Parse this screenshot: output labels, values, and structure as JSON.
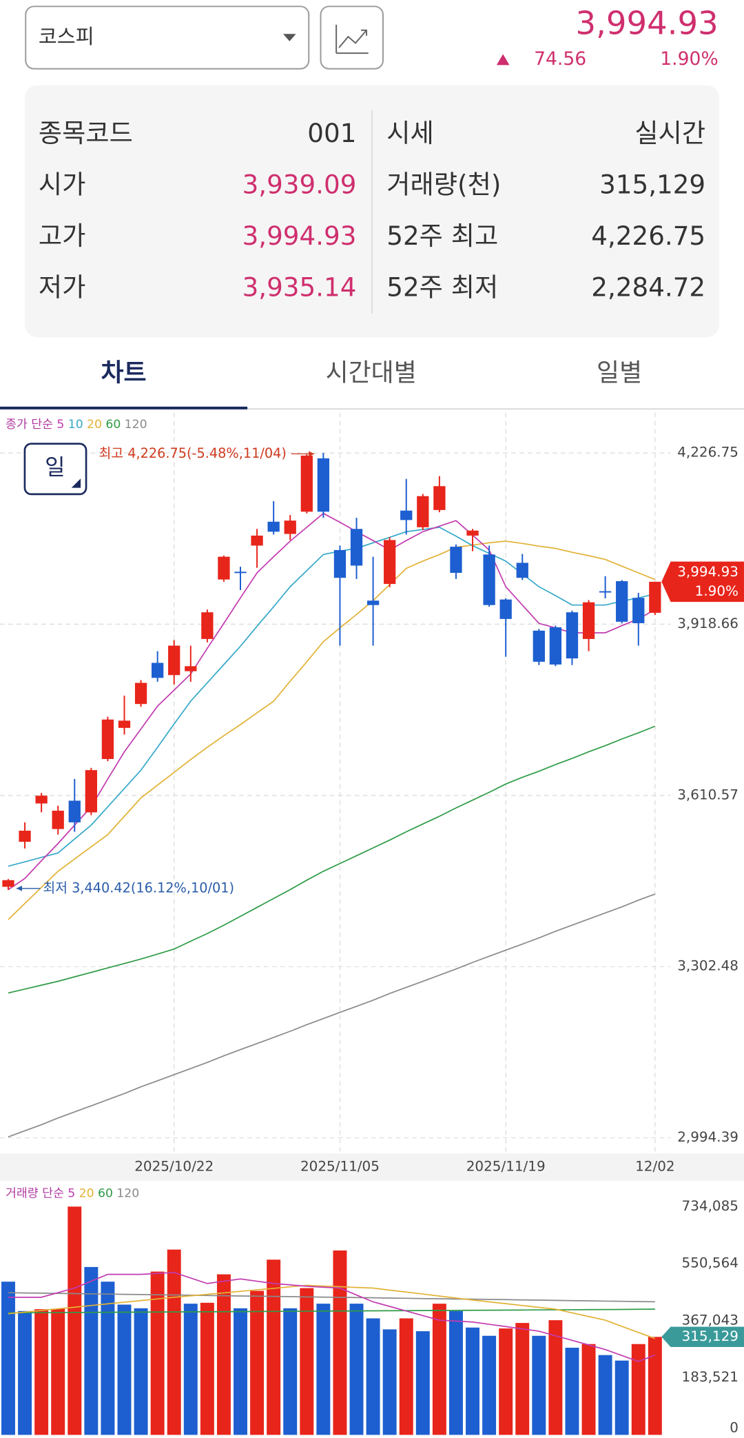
{
  "header": {
    "market": "코스피",
    "price": "3,994.93",
    "change": "74.56",
    "change_rate": "1.90%"
  },
  "info": {
    "left": [
      [
        "종목코드",
        "001"
      ],
      [
        "시가",
        "3,939.09"
      ],
      [
        "고가",
        "3,994.93"
      ],
      [
        "저가",
        "3,935.14"
      ]
    ],
    "right": [
      [
        "시세",
        "실시간"
      ],
      [
        "거래량(천)",
        "315,129"
      ],
      [
        "52주 최고",
        "4,226.75"
      ],
      [
        "52주 최저",
        "2,284.72"
      ]
    ]
  },
  "tabs": [
    "차트",
    "시간대별",
    "일별"
  ],
  "period_button": "일",
  "chart_data": [
    {
      "type": "candlestick",
      "legend_title": "종가 단순",
      "categories": [
        null,
        null,
        null,
        null,
        null,
        null,
        null,
        null,
        null,
        null,
        "2025/10/22",
        null,
        null,
        null,
        null,
        null,
        null,
        null,
        null,
        null,
        "2025/11/05",
        null,
        null,
        null,
        null,
        null,
        null,
        null,
        null,
        null,
        "2025/11/19",
        null,
        null,
        null,
        null,
        null,
        null,
        null,
        null,
        "12/02"
      ],
      "open": [
        3446,
        3527,
        3596,
        3550,
        3601,
        3580,
        3676,
        3732,
        3775,
        3849,
        3827,
        3834,
        3892,
        3999,
        4013,
        4060,
        4103,
        4081,
        4121,
        4217,
        4052,
        4090,
        3961,
        3991,
        4123,
        4093,
        4124,
        4058,
        4078,
        4044,
        3963,
        4029,
        3907,
        3913,
        3940,
        3892,
        3978,
        3996,
        3966,
        3939.09
      ],
      "high": [
        3460,
        3562,
        3615,
        3592,
        3640,
        3660,
        3752,
        3790,
        3818,
        3870,
        3890,
        3880,
        3945,
        4042,
        4022,
        4090,
        4140,
        4115,
        4224,
        4226.75,
        4060,
        4110,
        4040,
        4075,
        4180,
        4153,
        4185,
        4062,
        4090,
        4060,
        3965,
        4045,
        3910,
        3916,
        3943,
        3962,
        4005,
        3998,
        3975,
        3994.93
      ],
      "low": [
        3440.42,
        3515,
        3580,
        3540,
        3545,
        3575,
        3672,
        3720,
        3770,
        3815,
        3810,
        3815,
        3886,
        3995,
        3980,
        4020,
        4080,
        4070,
        4118,
        4110,
        3880,
        4000,
        3880,
        3985,
        4080,
        4088,
        4120,
        4000,
        4050,
        3950,
        3860,
        3998,
        3845,
        3843,
        3845,
        3870,
        3965,
        3920,
        3880,
        3935.14
      ],
      "close": [
        3458,
        3547,
        3610,
        3583,
        3562,
        3656,
        3747,
        3745,
        3813,
        3822,
        3880,
        3843,
        3940,
        4040,
        4011,
        4078,
        4085,
        4105,
        4222,
        4121,
        4002,
        4024,
        3953,
        4070,
        4106,
        4149,
        4167,
        4011,
        4087,
        3953,
        3928,
        4002,
        3851,
        3846,
        3857,
        3958,
        3976,
        3923,
        3920.37,
        3994.93
      ],
      "up_color": "#e8251b",
      "down_color": "#1d5fd0",
      "series": [
        {
          "name": "5",
          "color": "#c23bb0",
          "values": [
            3441,
            3461,
            3493,
            3524,
            3557,
            3590,
            3640,
            3689,
            3730,
            3771,
            3800,
            3829,
            3875,
            3920,
            3966,
            4011,
            4040,
            4068,
            4093,
            4118,
            4102,
            4085,
            4069,
            4052,
            4069,
            4085,
            4095,
            4105,
            4079,
            4052,
            3986,
            3953,
            3920,
            3912,
            3903,
            3903,
            3903,
            3916,
            3928,
            3945
          ]
        },
        {
          "name": "10",
          "color": "#35a9c9",
          "values": [
            3483,
            3491,
            3499,
            3507,
            3532,
            3557,
            3590,
            3623,
            3656,
            3697,
            3739,
            3780,
            3813,
            3846,
            3879,
            3915,
            3950,
            3986,
            4015,
            4044,
            4050,
            4055,
            4065,
            4075,
            4085,
            4089,
            4093,
            4077,
            4060,
            4046,
            4032,
            4009,
            3986,
            3970,
            3953,
            3953,
            3953,
            3960,
            3966,
            3973
          ]
        },
        {
          "name": "20",
          "color": "#e2b236",
          "values": [
            3387,
            3416,
            3445,
            3474,
            3496,
            3518,
            3540,
            3573,
            3606,
            3629,
            3652,
            3675,
            3697,
            3718,
            3738,
            3759,
            3780,
            3816,
            3851,
            3887,
            3912,
            3936,
            3961,
            3990,
            4019,
            4032,
            4044,
            4057,
            4061,
            4065,
            4068,
            4064,
            4059,
            4055,
            4048,
            4042,
            4035,
            4023,
            4011,
            3999
          ]
        },
        {
          "name": "60",
          "color": "#2e9b46",
          "values": [
            3255,
            3262,
            3269,
            3276,
            3284,
            3292,
            3300,
            3308,
            3316,
            3325,
            3334,
            3348,
            3362,
            3377,
            3393,
            3409,
            3425,
            3441,
            3458,
            3474,
            3488,
            3502,
            3516,
            3530,
            3545,
            3559,
            3573,
            3588,
            3602,
            3616,
            3631,
            3643,
            3654,
            3666,
            3677,
            3689,
            3700,
            3712,
            3723,
            3735
          ]
        },
        {
          "name": "120",
          "color": "#8a8a8a",
          "values": [
            2996,
            3007,
            3018,
            3030,
            3041,
            3052,
            3063,
            3074,
            3086,
            3097,
            3108,
            3119,
            3130,
            3142,
            3153,
            3164,
            3175,
            3186,
            3198,
            3209,
            3220,
            3231,
            3242,
            3254,
            3265,
            3276,
            3287,
            3298,
            3310,
            3321,
            3332,
            3343,
            3354,
            3366,
            3377,
            3388,
            3399,
            3410,
            3422,
            3433
          ]
        }
      ],
      "ylim": [
        2966.3,
        4291.1
      ],
      "yticks": [
        {
          "value": 2994.39,
          "label": "2,994.39"
        },
        {
          "value": 3302.48,
          "label": "3,302.48"
        },
        {
          "value": 3610.57,
          "label": "3,610.57"
        },
        {
          "value": 3918.66,
          "label": "3,918.66"
        },
        {
          "value": 4226.75,
          "label": "4,226.75"
        }
      ],
      "grid": true,
      "annotations": [
        "최고 4,226.75(-5.48%,11/04)",
        "최저 3,440.42(16.12%,10/01)"
      ],
      "last_tag": [
        "3,994.93",
        "1.90%"
      ]
    },
    {
      "type": "bar",
      "legend_title": "거래량 단순",
      "values": [
        492650,
        398250,
        404150,
        405600,
        734085,
        539850,
        492650,
        418900,
        407100,
        525100,
        595900,
        421850,
        424800,
        516250,
        407100,
        463150,
        563450,
        407100,
        472000,
        421850,
        592950,
        421850,
        374650,
        339250,
        374650,
        333350,
        421850,
        398250,
        345150,
        318600,
        342200,
        359900,
        318600,
        368750,
        280250,
        292050,
        256650,
        238950,
        292050,
        315129
      ],
      "up_color": "#e8251b",
      "down_color": "#1d5fd0",
      "series": [
        {
          "name": "5",
          "color": "#c23bb0",
          "values": [
            442500,
            442500,
            442500,
            457250,
            472000,
            494100,
            516250,
            516250,
            516250,
            519200,
            522150,
            504450,
            486750,
            494100,
            501500,
            494100,
            486750,
            482300,
            477900,
            474950,
            472000,
            449900,
            427750,
            413000,
            398250,
            383500,
            368750,
            365800,
            362850,
            355500,
            348100,
            340700,
            333350,
            318600,
            303850,
            289100,
            274350,
            255200,
            236000,
            256650
          ]
        },
        {
          "name": "20",
          "color": "#e2b236",
          "values": [
            389400,
            394700,
            400000,
            405300,
            410600,
            415900,
            421200,
            426500,
            431800,
            437100,
            442500,
            447300,
            452000,
            456800,
            461600,
            466400,
            471200,
            476000,
            480850,
            478600,
            476400,
            474200,
            472000,
            465600,
            459200,
            452800,
            446400,
            440000,
            433650,
            427800,
            421900,
            416000,
            410100,
            404150,
            392400,
            380600,
            368750,
            349100,
            329400,
            309750
          ]
        },
        {
          "name": "60",
          "color": "#2e9b46",
          "values": [
            392350,
            392650,
            392950,
            393250,
            393550,
            393850,
            394150,
            394450,
            394750,
            395050,
            395350,
            395650,
            395950,
            396250,
            396550,
            396850,
            397150,
            397450,
            397750,
            398050,
            398350,
            398650,
            398950,
            399250,
            399550,
            399850,
            400150,
            400450,
            400750,
            401050,
            401350,
            401650,
            401950,
            402250,
            402550,
            402850,
            403150,
            403450,
            403750,
            404050
          ]
        },
        {
          "name": "120",
          "color": "#8a8a8a",
          "values": [
            457250,
            456500,
            455750,
            455000,
            454250,
            453500,
            452750,
            452000,
            451250,
            450500,
            449750,
            449000,
            448250,
            447500,
            446750,
            446000,
            445250,
            444500,
            443750,
            443000,
            442250,
            441500,
            440750,
            440000,
            439250,
            438500,
            437750,
            437000,
            436250,
            435500,
            434750,
            434000,
            433250,
            432500,
            431750,
            431000,
            430250,
            429500,
            428750,
            428000
          ]
        }
      ],
      "ylim": [
        0,
        734085
      ],
      "yticks": [
        0,
        {
          "value": 183521,
          "label": "183,521"
        },
        {
          "value": 367043,
          "label": "367,043"
        },
        {
          "value": 550564,
          "label": "550,564"
        },
        {
          "value": 734085,
          "label": "734,085"
        }
      ],
      "grid": false,
      "last_tag": "315,129"
    }
  ]
}
